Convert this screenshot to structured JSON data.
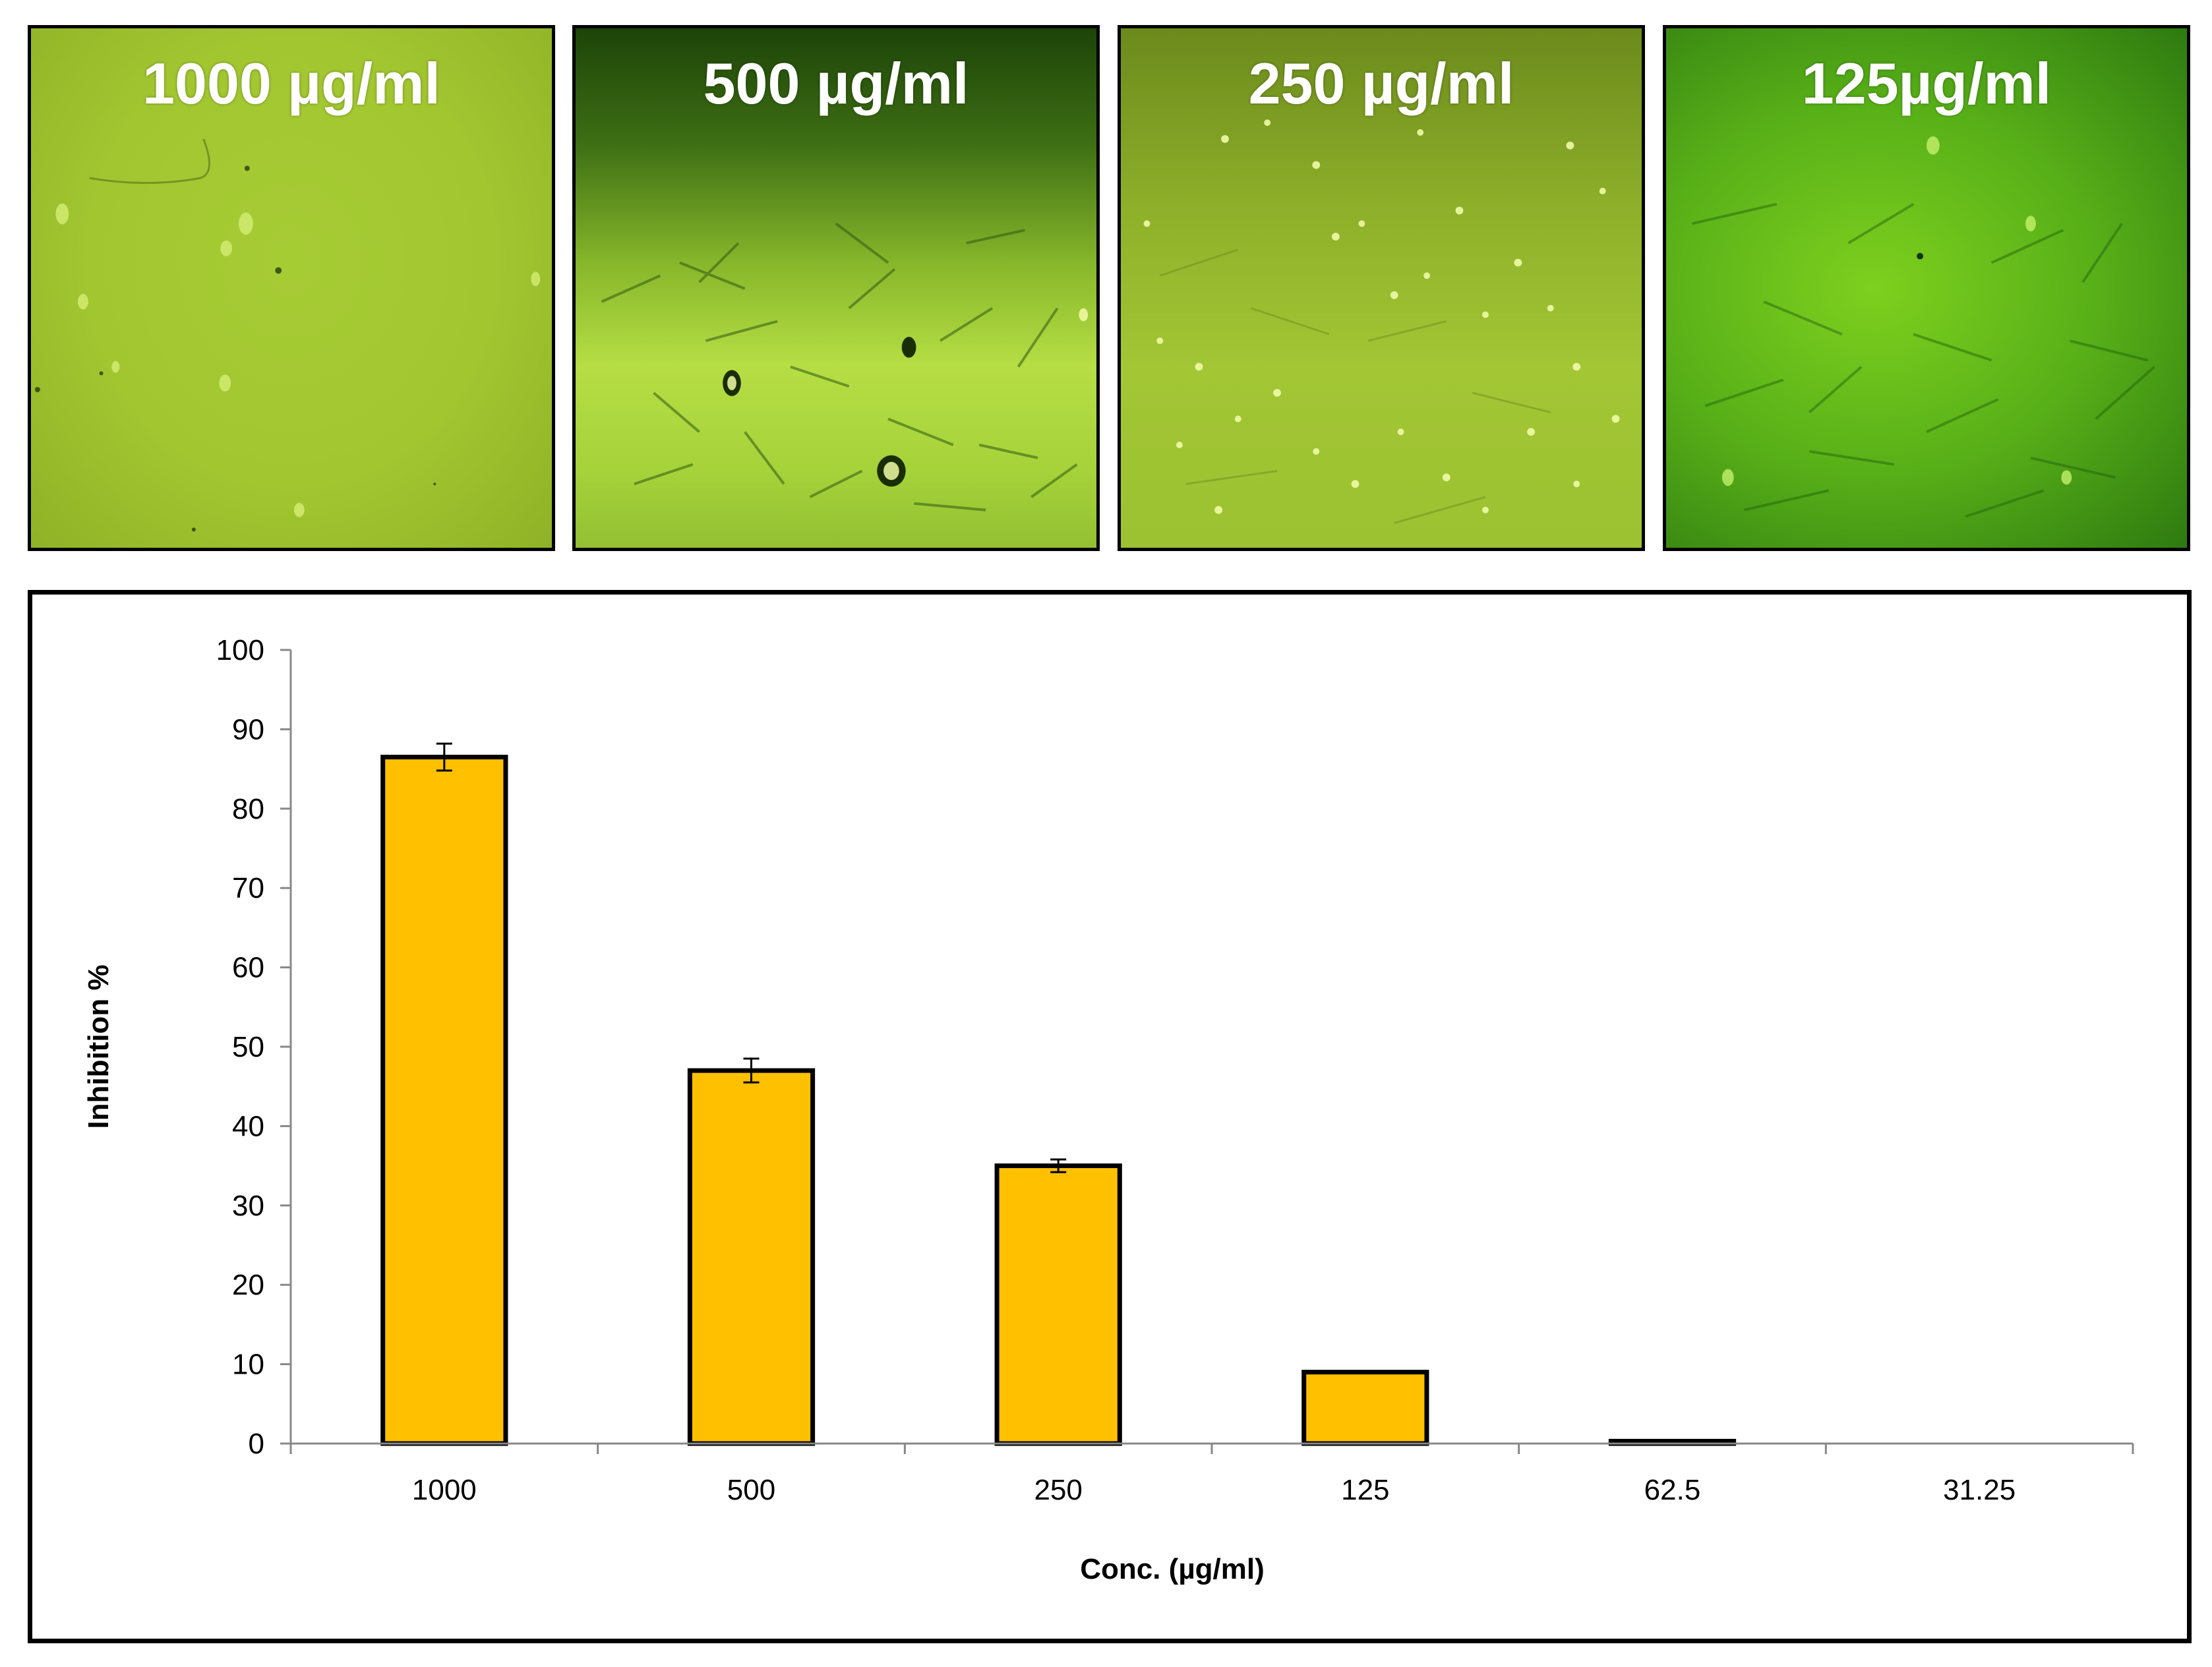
{
  "panels": [
    {
      "label": "1000 µg/ml"
    },
    {
      "label": "500 µg/ml"
    },
    {
      "label": "250 µg/ml"
    },
    {
      "label": "125µg/ml"
    }
  ],
  "colors": {
    "bar_fill": "#ffc000",
    "bar_stroke": "#000000",
    "axis": "#000000"
  },
  "chart_data": {
    "type": "bar",
    "title": "",
    "xlabel": "Conc. (µg/ml)",
    "ylabel": "Inhibition %",
    "categories": [
      "1000",
      "500",
      "250",
      "125",
      "62.5",
      "31.25"
    ],
    "values": [
      86.5,
      47,
      35,
      9,
      0.3,
      0
    ],
    "errors": [
      1.7,
      1.5,
      0.8,
      0,
      0,
      0
    ],
    "ylim": [
      0,
      100
    ],
    "yticks": [
      "0",
      "10",
      "20",
      "30",
      "40",
      "50",
      "60",
      "70",
      "80",
      "90",
      "100"
    ],
    "grid": false,
    "legend": "none"
  }
}
